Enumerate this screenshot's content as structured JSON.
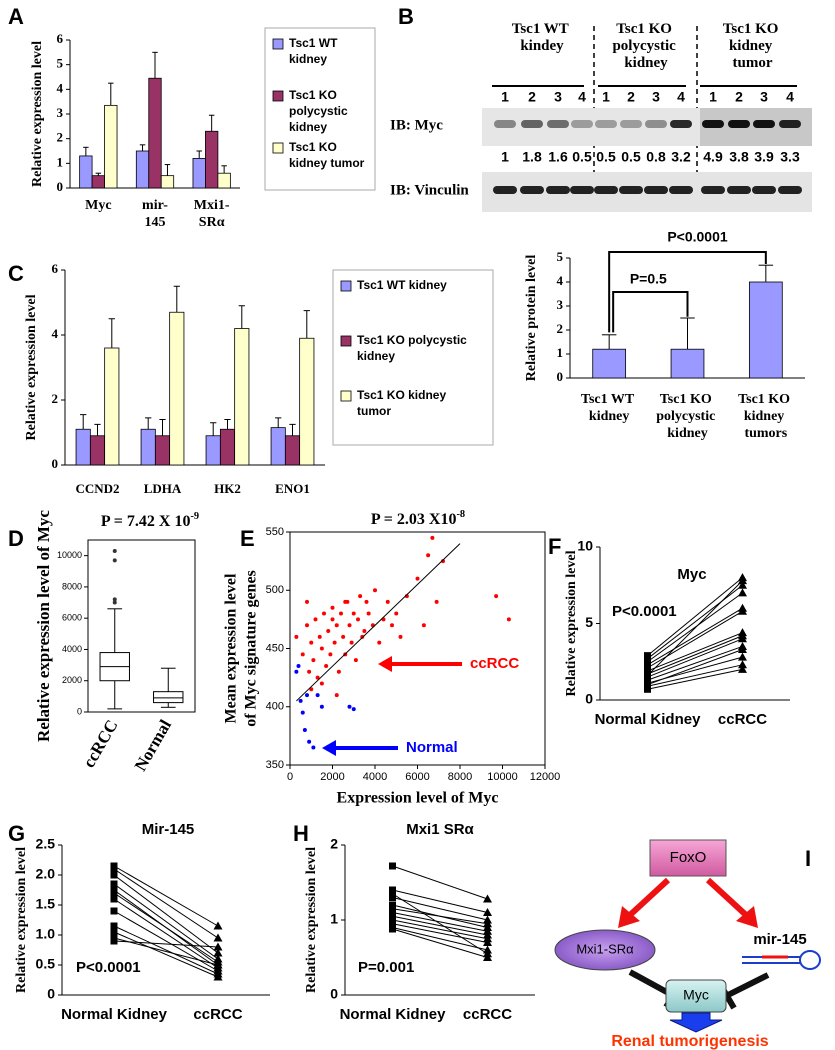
{
  "chart_data": [
    {
      "type": "bar",
      "panel": "A",
      "ylabel": "Relative expression level",
      "categories": [
        "Myc",
        "mir-145",
        "Mxi1-SRα"
      ],
      "ylim": [
        0,
        6
      ],
      "yticks": [
        0,
        1,
        2,
        3,
        4,
        5,
        6
      ],
      "series": [
        {
          "name": "Tsc1 WT kidney",
          "color": "#9999ff",
          "values": [
            1.3,
            1.5,
            1.2
          ],
          "errors": [
            0.35,
            0.25,
            0.3
          ]
        },
        {
          "name": "Tsc1 KO polycystic kidney",
          "color": "#993366",
          "values": [
            0.5,
            4.45,
            2.3
          ],
          "errors": [
            0.1,
            1.05,
            0.65
          ]
        },
        {
          "name": "Tsc1 KO kidney tumor",
          "color": "#ffffcc",
          "values": [
            3.35,
            0.5,
            0.6
          ],
          "errors": [
            0.9,
            0.45,
            0.3
          ]
        }
      ]
    },
    {
      "type": "bar",
      "ylabel": "Relative protein level",
      "categories": [
        "Tsc1 WT kidney",
        "Tsc1 KO polycystic kidney",
        "Tsc1 KO kidney tumors"
      ],
      "values": [
        1.2,
        1.2,
        4.0
      ],
      "errors": [
        0.6,
        1.3,
        0.7
      ],
      "color": "#9999ff",
      "ylim": [
        0,
        5
      ],
      "yticks": [
        0,
        1,
        2,
        3,
        4,
        5
      ],
      "annotations": [
        "P<0.0001",
        "P=0.5"
      ]
    },
    {
      "type": "bar",
      "panel": "C",
      "ylabel": "Relative expression level",
      "categories": [
        "CCND2",
        "LDHA",
        "HK2",
        "ENO1"
      ],
      "ylim": [
        0,
        6
      ],
      "yticks": [
        0,
        2,
        4,
        6
      ],
      "series": [
        {
          "name": "Tsc1 WT kidney",
          "color": "#9999ff",
          "values": [
            1.1,
            1.1,
            0.9,
            1.15
          ],
          "errors": [
            0.45,
            0.35,
            0.4,
            0.3
          ]
        },
        {
          "name": "Tsc1 KO polycystic kidney",
          "color": "#993366",
          "values": [
            0.9,
            0.9,
            1.1,
            0.9
          ],
          "errors": [
            0.35,
            0.5,
            0.3,
            0.35
          ]
        },
        {
          "name": "Tsc1 KO kidney tumor",
          "color": "#ffffcc",
          "values": [
            3.6,
            4.7,
            4.2,
            3.9
          ],
          "errors": [
            0.9,
            0.8,
            0.7,
            0.85
          ]
        }
      ]
    },
    {
      "type": "box",
      "panel": "D",
      "title": {
        "text": "P = 7.42 X 10",
        "superscript": "-9"
      },
      "ylabel": "Relative expression level of Myc",
      "categories": [
        "ccRCC",
        "Normal"
      ],
      "ylim": [
        0,
        11000
      ],
      "yticks": [
        0,
        2000,
        4000,
        6000,
        8000,
        10000
      ],
      "boxes": [
        {
          "min": 200,
          "q1": 2000,
          "median": 2900,
          "q3": 3800,
          "max": 6600,
          "outliers": [
            7000,
            7200,
            9700,
            10300
          ]
        },
        {
          "min": 300,
          "q1": 600,
          "median": 900,
          "q3": 1300,
          "max": 2800,
          "outliers": []
        }
      ]
    },
    {
      "type": "scatter",
      "panel": "E",
      "title": {
        "text": "P = 2.03 X10",
        "superscript": "-8"
      },
      "xlabel": "Expression level of Myc",
      "ylabel": [
        "Mean expression level",
        "of Myc signature genes"
      ],
      "xlim": [
        0,
        12000
      ],
      "xticks": [
        0,
        2000,
        4000,
        6000,
        8000,
        10000,
        12000
      ],
      "ylim": [
        350,
        550
      ],
      "yticks": [
        350,
        400,
        450,
        500,
        550
      ],
      "series": [
        {
          "name": "ccRCC",
          "color": "#ff0000",
          "x": [
            300,
            600,
            800,
            900,
            1000,
            1100,
            1200,
            1300,
            1400,
            1500,
            1600,
            1700,
            1800,
            1900,
            2000,
            2100,
            2200,
            2300,
            2400,
            2500,
            2600,
            2700,
            2800,
            2900,
            3000,
            3100,
            3200,
            3300,
            3400,
            3500,
            3700,
            3900,
            4000,
            4200,
            4400,
            4600,
            4800,
            5000,
            5200,
            5500,
            6000,
            6300,
            6500,
            6700,
            6900,
            7200,
            9700,
            10300,
            1500,
            2200,
            1000,
            2600,
            3600,
            800,
            2000
          ],
          "y": [
            460,
            445,
            470,
            430,
            455,
            440,
            475,
            425,
            460,
            450,
            480,
            435,
            465,
            445,
            485,
            455,
            470,
            430,
            480,
            460,
            445,
            490,
            470,
            455,
            480,
            440,
            475,
            495,
            460,
            465,
            480,
            470,
            500,
            455,
            475,
            490,
            470,
            480,
            460,
            495,
            510,
            470,
            530,
            545,
            490,
            525,
            495,
            475,
            420,
            410,
            415,
            490,
            490,
            490,
            475
          ]
        },
        {
          "name": "Normal",
          "color": "#0000ff",
          "x": [
            300,
            400,
            500,
            600,
            700,
            800,
            900,
            1100,
            1300,
            1500,
            2800,
            3000
          ],
          "y": [
            430,
            435,
            405,
            395,
            380,
            410,
            370,
            365,
            410,
            400,
            400,
            398
          ]
        }
      ],
      "trendline": {
        "x": [
          300,
          8000
        ],
        "y": [
          405,
          540
        ]
      }
    },
    {
      "type": "line",
      "panel": "F",
      "title": "Myc",
      "annotations": [
        "P<0.0001"
      ],
      "ylabel": "Relative expression level",
      "categories": [
        "Normal Kidney",
        "ccRCC"
      ],
      "ylim": [
        0,
        10
      ],
      "yticks": [
        0,
        5,
        10
      ],
      "values": [
        [
          0.7,
          2.0
        ],
        [
          0.9,
          2.3
        ],
        [
          1.1,
          2.8
        ],
        [
          1.3,
          3.5
        ],
        [
          1.5,
          4.0
        ],
        [
          1.7,
          4.2
        ],
        [
          1.9,
          4.4
        ],
        [
          2.1,
          5.8
        ],
        [
          2.3,
          6.0
        ],
        [
          2.5,
          7.0
        ],
        [
          2.7,
          7.5
        ],
        [
          2.9,
          8.0
        ],
        [
          1.0,
          3.3
        ],
        [
          1.6,
          7.8
        ]
      ]
    },
    {
      "type": "line",
      "panel": "G",
      "title": "Mir-145",
      "annotations": [
        "P<0.0001"
      ],
      "ylabel": "Relative expression level",
      "categories": [
        "Normal Kidney",
        "ccRCC"
      ],
      "ylim": [
        0,
        2.5
      ],
      "yticks": [
        0,
        0.5,
        {
          "value": 1,
          "label": "1.0"
        },
        1.5,
        {
          "value": 2,
          "label": "2.0"
        },
        2.5
      ],
      "values": [
        [
          2.15,
          1.15
        ],
        [
          2.1,
          0.95
        ],
        [
          2.0,
          0.7
        ],
        [
          1.85,
          0.6
        ],
        [
          1.75,
          0.5
        ],
        [
          1.7,
          0.55
        ],
        [
          1.6,
          0.45
        ],
        [
          1.4,
          0.4
        ],
        [
          1.15,
          0.35
        ],
        [
          1.05,
          0.3
        ],
        [
          0.95,
          0.5
        ],
        [
          0.9,
          0.8
        ]
      ]
    },
    {
      "type": "line",
      "panel": "H",
      "title": "Mxi1 SRα",
      "annotations": [
        "P=0.001"
      ],
      "ylabel": "Relative expression level",
      "categories": [
        "Normal Kidney",
        "ccRCC"
      ],
      "ylim": [
        0,
        2
      ],
      "yticks": [
        0,
        1,
        2
      ],
      "values": [
        [
          1.72,
          1.28
        ],
        [
          1.4,
          1.1
        ],
        [
          1.3,
          1.0
        ],
        [
          1.2,
          0.9
        ],
        [
          1.1,
          0.85
        ],
        [
          1.05,
          0.8
        ],
        [
          1.0,
          0.75
        ],
        [
          0.95,
          0.7
        ],
        [
          0.9,
          0.6
        ],
        [
          0.88,
          0.5
        ],
        [
          1.35,
          0.55
        ],
        [
          1.15,
          0.95
        ]
      ]
    }
  ],
  "blot": {
    "panel": "B",
    "groups": [
      "Tsc1 WT kindey",
      "Tsc1 KO polycystic kidney",
      "Tsc1 KO kidney tumor"
    ],
    "lanes": [
      1,
      2,
      3,
      4,
      1,
      2,
      3,
      4,
      1,
      2,
      3,
      4
    ],
    "rows": [
      {
        "label": "IB: Myc",
        "quantification": [
          1,
          1.8,
          1.6,
          0.5,
          0.5,
          0.5,
          0.8,
          3.2,
          4.9,
          3.8,
          3.9,
          3.3
        ]
      },
      {
        "label": "IB: Vinculin"
      }
    ]
  },
  "diagram": {
    "panel": "I",
    "nodes": [
      "FoxO",
      "Mxi1-SRα",
      "mir-145",
      "Myc"
    ],
    "outcome": "Renal tumorigenesis"
  }
}
